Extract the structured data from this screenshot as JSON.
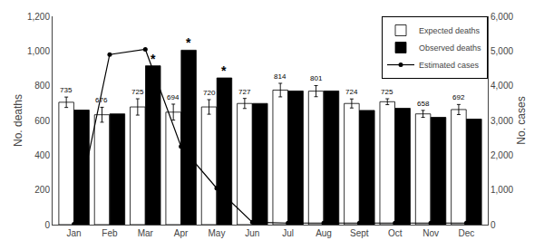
{
  "chart_data": {
    "type": "bar",
    "categories": [
      "Jan",
      "Feb",
      "Mar",
      "Apr",
      "May",
      "Jun",
      "Jul",
      "Aug",
      "Sept",
      "Oct",
      "Nov",
      "Dec"
    ],
    "series": [
      {
        "name": "Expected deaths",
        "color": "white",
        "values": [
          705,
          633,
          678,
          648,
          678,
          698,
          775,
          769,
          698,
          708,
          638,
          663
        ],
        "ci_lower": [
          675,
          590,
          631,
          602,
          636,
          669,
          736,
          737,
          672,
          691,
          618,
          634
        ],
        "ci_upper": [
          735,
          676,
          725,
          694,
          720,
          727,
          814,
          801,
          724,
          725,
          658,
          692
        ]
      },
      {
        "name": "Observed deaths",
        "color": "black",
        "values": [
          660,
          638,
          915,
          1005,
          845,
          698,
          770,
          770,
          658,
          670,
          618,
          608
        ]
      },
      {
        "name": "Estimated cases",
        "type": "line",
        "axis": "y2",
        "color": "black",
        "marker": "circle",
        "values": [
          15,
          4900,
          5050,
          2250,
          1050,
          70,
          45,
          45,
          45,
          45,
          45,
          45
        ]
      }
    ],
    "annotations": [
      {
        "category": "Mar",
        "series": "Observed deaths",
        "text": "*"
      },
      {
        "category": "Apr",
        "series": "Observed deaths",
        "text": "*"
      },
      {
        "category": "May",
        "series": "Observed deaths",
        "text": "*"
      }
    ],
    "ylabel": "No. deaths",
    "y2label": "No. cases",
    "ylim": [
      0,
      1200
    ],
    "yticks": [
      0,
      200,
      400,
      600,
      800,
      {
        "value": 1000,
        "label": "1,000"
      },
      {
        "value": 1200,
        "label": "1,200"
      }
    ],
    "y2lim": [
      0,
      6000
    ],
    "y2ticks": [
      0,
      {
        "value": 1000,
        "label": "1,000"
      },
      {
        "value": 2000,
        "label": "2,000"
      },
      {
        "value": 3000,
        "label": "3,000"
      },
      {
        "value": 4000,
        "label": "4,000"
      },
      {
        "value": 5000,
        "label": "5,000"
      },
      {
        "value": 6000,
        "label": "6,000"
      }
    ],
    "grid": false,
    "legend": "upper right"
  }
}
